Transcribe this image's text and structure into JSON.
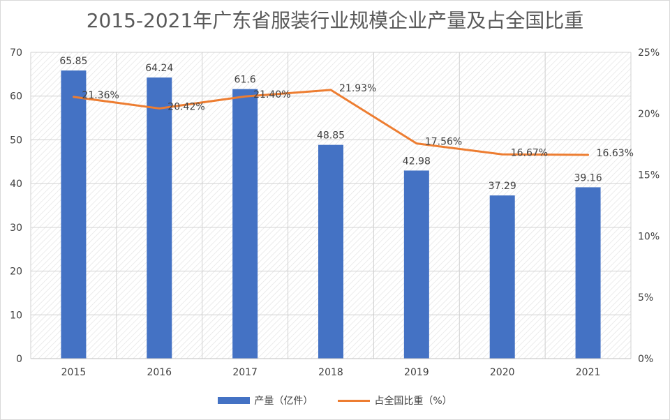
{
  "chart_data": {
    "type": "bar",
    "title": "2015-2021年广东省服装行业规模企业产量及占全国比重",
    "categories": [
      "2015",
      "2016",
      "2017",
      "2018",
      "2019",
      "2020",
      "2021"
    ],
    "series": [
      {
        "name": "产量（亿件）",
        "type": "bar",
        "axis": "left",
        "values": [
          65.85,
          64.24,
          61.6,
          48.85,
          42.98,
          37.29,
          39.16
        ],
        "labels": [
          "65.85",
          "64.24",
          "61.6",
          "48.85",
          "42.98",
          "37.29",
          "39.16"
        ],
        "color": "#4472c4"
      },
      {
        "name": "占全国比重（%）",
        "type": "line",
        "axis": "right",
        "values": [
          21.36,
          20.42,
          21.4,
          21.93,
          17.56,
          16.67,
          16.63
        ],
        "labels": [
          "21.36%",
          "20.42%",
          "21.40%",
          "21.93%",
          "17.56%",
          "16.67%",
          "16.63%"
        ],
        "color": "#ed7d31"
      }
    ],
    "y_left": {
      "min": 0,
      "max": 70,
      "step": 10,
      "ticks": [
        "0",
        "10",
        "20",
        "30",
        "40",
        "50",
        "60",
        "70"
      ]
    },
    "y_right": {
      "min": 0,
      "max": 25,
      "step": 5,
      "ticks": [
        "0%",
        "5%",
        "10%",
        "15%",
        "20%",
        "25%"
      ]
    },
    "grid": true,
    "legend_position": "bottom"
  }
}
